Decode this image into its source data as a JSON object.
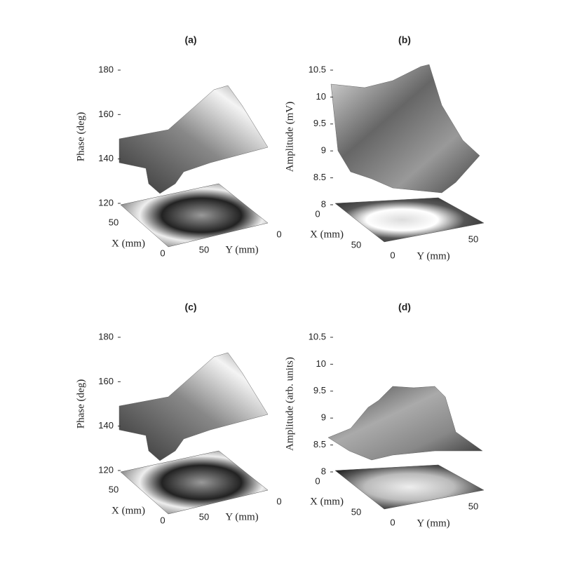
{
  "chart_data": [
    {
      "type": "surface3d",
      "title": "(a)",
      "zlabel": "Phase (deg)",
      "xlabel": "X (mm)",
      "ylabel": "Y (mm)",
      "zlim": [
        120,
        180
      ],
      "zticks": [
        120,
        140,
        160,
        180
      ],
      "xticks": [
        0,
        50
      ],
      "yticks": [
        0,
        50
      ]
    },
    {
      "type": "surface3d",
      "title": "(b)",
      "zlabel": "Amplitude (mV)",
      "xlabel": "X (mm)",
      "ylabel": "Y (mm)",
      "zlim": [
        8,
        10.5
      ],
      "zticks": [
        8,
        8.5,
        9,
        9.5,
        10,
        10.5
      ],
      "xticks": [
        0,
        50
      ],
      "yticks": [
        0,
        50
      ]
    },
    {
      "type": "surface3d",
      "title": "(c)",
      "zlabel": "Phase (deg)",
      "xlabel": "X (mm)",
      "ylabel": "Y (mm)",
      "zlim": [
        120,
        180
      ],
      "zticks": [
        120,
        140,
        160,
        180
      ],
      "xticks": [
        0,
        50
      ],
      "yticks": [
        0,
        50
      ]
    },
    {
      "type": "surface3d",
      "title": "(d)",
      "zlabel": "Amplitude (arb. units)",
      "xlabel": "X (mm)",
      "ylabel": "Y (mm)",
      "zlim": [
        8,
        10.5
      ],
      "zticks": [
        8,
        8.5,
        9,
        9.5,
        10,
        10.5
      ],
      "xticks": [
        0,
        50
      ],
      "yticks": [
        0,
        50
      ]
    }
  ]
}
